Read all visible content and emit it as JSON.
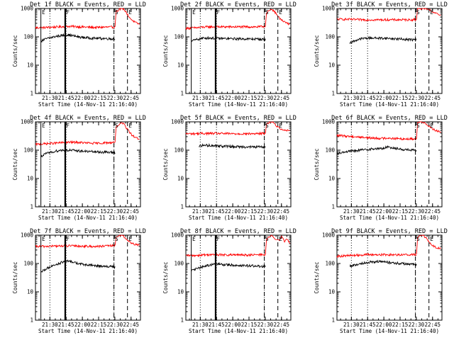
{
  "figure": {
    "colors": {
      "events": "#000000",
      "lld": "#ff0000",
      "axis": "#000000",
      "background": "#ffffff"
    }
  },
  "chart_data": [
    {
      "type": "line",
      "title": "Det 1f BLACK = Events, RED = LLD",
      "ylabel": "Counts/sec",
      "xlabel": "Start Time (14-Nov-11 21:16:40)",
      "ylim": [
        1,
        1000
      ],
      "yscale": "log",
      "yticks": [
        "1",
        "10",
        "100",
        "1000"
      ],
      "xlim_minutes": [
        0,
        97
      ],
      "xticks": [
        "21:30",
        "21:45",
        "22:00",
        "22:15",
        "22:30",
        "22:45"
      ],
      "xtick_minutes": [
        13.33,
        28.33,
        43.33,
        58.33,
        73.33,
        88.33
      ],
      "start_min": 5,
      "events": {
        "name": "Events",
        "start": 5,
        "values": [
          70,
          85,
          95,
          105,
          112,
          118,
          110,
          100,
          95,
          92,
          90,
          88,
          88,
          86,
          85
        ]
      },
      "lld": {
        "name": "LLD",
        "start": 0,
        "values": [
          210,
          210,
          215,
          220,
          225,
          230,
          235,
          230,
          225,
          220,
          215,
          215,
          220,
          220,
          225
        ]
      },
      "gap_min": 73.5,
      "burst": {
        "start": 74.5,
        "values": [
          800,
          900,
          1000,
          950,
          700,
          500,
          400,
          340,
          300,
          280
        ]
      },
      "markers": [
        {
          "label": "E",
          "min": 5,
          "style": "solid"
        },
        {
          "label": "F",
          "min": 27.5,
          "style": "thick"
        },
        {
          "label": "S",
          "min": 72.5,
          "style": "dashed"
        },
        {
          "label": "E",
          "min": 85,
          "style": "dashed"
        }
      ],
      "vlines": [
        {
          "min": 13.33,
          "style": "dotted"
        },
        {
          "min": 28.3,
          "style": "dotted"
        },
        {
          "min": 72.5,
          "style": "dotted"
        }
      ]
    },
    {
      "type": "line",
      "title": "Det 2f BLACK = Events, RED = LLD",
      "ylabel": "Counts/sec",
      "xlabel": "Start Time (14-Nov-11 21:16:40)",
      "ylim": [
        1,
        1000
      ],
      "yscale": "log",
      "yticks": [
        "1",
        "10",
        "100",
        "1000"
      ],
      "xlim_minutes": [
        0,
        97
      ],
      "xticks": [
        "21:30",
        "21:45",
        "22:00",
        "22:15",
        "22:30",
        "22:45"
      ],
      "xtick_minutes": [
        13.33,
        28.33,
        43.33,
        58.33,
        73.33,
        88.33
      ],
      "start_min": 5,
      "events": {
        "name": "Events",
        "start": 5,
        "values": [
          70,
          80,
          88,
          92,
          90,
          88,
          87,
          86,
          86,
          85,
          85,
          84,
          84,
          83,
          80
        ]
      },
      "lld": {
        "name": "LLD",
        "start": 0,
        "values": [
          200,
          205,
          210,
          220,
          225,
          225,
          225,
          225,
          225,
          225,
          225,
          225,
          225,
          225,
          240
        ]
      },
      "gap_min": 73.5,
      "burst": {
        "start": 74.5,
        "values": [
          700,
          850,
          950,
          800,
          600,
          460,
          380,
          330,
          300,
          280
        ]
      },
      "markers": [
        {
          "label": "E",
          "min": 5,
          "style": "solid"
        },
        {
          "label": "F",
          "min": 27.5,
          "style": "thick"
        },
        {
          "label": "S",
          "min": 72.5,
          "style": "dashed"
        },
        {
          "label": "E",
          "min": 85,
          "style": "dashed"
        }
      ],
      "vlines": [
        {
          "min": 13.33,
          "style": "dotted"
        },
        {
          "min": 28.3,
          "style": "dotted"
        },
        {
          "min": 72.5,
          "style": "dotted"
        }
      ]
    },
    {
      "type": "line",
      "title": "Det 3f BLACK = Events, RED = LLD",
      "ylabel": "Counts/sec",
      "xlabel": "Start Time (14-Nov-11 21:16:40)",
      "ylim": [
        1,
        1000
      ],
      "yscale": "log",
      "yticks": [
        "1",
        "10",
        "100",
        "1000"
      ],
      "xlim_minutes": [
        0,
        97
      ],
      "xticks": [
        "21:30",
        "21:45",
        "22:00",
        "22:15",
        "22:30",
        "22:45"
      ],
      "xtick_minutes": [
        13.33,
        28.33,
        43.33,
        58.33,
        73.33,
        88.33
      ],
      "start_min": 5,
      "events": {
        "name": "Events",
        "start": 12,
        "values": [
          60,
          75,
          85,
          90,
          92,
          90,
          90,
          88,
          86,
          84,
          82,
          80,
          78
        ]
      },
      "lld": {
        "name": "LLD",
        "start": 0,
        "values": [
          420,
          420,
          415,
          410,
          405,
          400,
          400,
          400,
          400,
          400,
          400,
          400,
          400,
          400,
          410
        ]
      },
      "gap_min": 73.5,
      "burst": {
        "start": 74.5,
        "values": [
          1000,
          1000,
          1000,
          1000,
          950,
          850,
          750,
          680,
          620,
          560
        ]
      },
      "markers": [
        {
          "label": "S",
          "min": 72.5,
          "style": "dashed"
        },
        {
          "label": "E",
          "min": 85,
          "style": "dashed"
        }
      ],
      "vlines": [
        {
          "min": 13.33,
          "style": "dotted"
        },
        {
          "min": 28.3,
          "style": "dotted"
        },
        {
          "min": 72.5,
          "style": "dotted"
        }
      ]
    },
    {
      "type": "line",
      "title": "Det 4f BLACK = Events, RED = LLD",
      "ylabel": "Counts/sec",
      "xlabel": "Start Time (14-Nov-11 21:16:40)",
      "ylim": [
        1,
        1000
      ],
      "yscale": "log",
      "yticks": [
        "1",
        "10",
        "100",
        "1000"
      ],
      "xlim_minutes": [
        0,
        97
      ],
      "xticks": [
        "21:30",
        "21:45",
        "22:00",
        "22:15",
        "22:30",
        "22:45"
      ],
      "xtick_minutes": [
        13.33,
        28.33,
        43.33,
        58.33,
        73.33,
        88.33
      ],
      "start_min": 5,
      "events": {
        "name": "Events",
        "start": 5,
        "values": [
          60,
          75,
          85,
          95,
          100,
          100,
          98,
          95,
          92,
          90,
          88,
          86,
          85,
          84,
          82
        ]
      },
      "lld": {
        "name": "LLD",
        "start": 0,
        "values": [
          160,
          165,
          170,
          175,
          180,
          185,
          190,
          190,
          185,
          180,
          175,
          175,
          180,
          185,
          190
        ]
      },
      "gap_min": 73.5,
      "burst": {
        "start": 74.5,
        "values": [
          650,
          800,
          900,
          850,
          600,
          450,
          350,
          300,
          270,
          250
        ]
      },
      "markers": [
        {
          "label": "E",
          "min": 5,
          "style": "solid"
        },
        {
          "label": "F",
          "min": 27.5,
          "style": "thick"
        },
        {
          "label": "S",
          "min": 72.5,
          "style": "dashed"
        },
        {
          "label": "E",
          "min": 85,
          "style": "dashed"
        }
      ],
      "vlines": [
        {
          "min": 13.33,
          "style": "dotted"
        },
        {
          "min": 28.3,
          "style": "dotted"
        },
        {
          "min": 72.5,
          "style": "dotted"
        }
      ]
    },
    {
      "type": "line",
      "title": "Det 5f BLACK = Events, RED = LLD",
      "ylabel": "Counts/sec",
      "xlabel": "Start Time (14-Nov-11 21:16:40)",
      "ylim": [
        1,
        1000
      ],
      "yscale": "log",
      "yticks": [
        "1",
        "10",
        "100",
        "1000"
      ],
      "xlim_minutes": [
        0,
        97
      ],
      "xticks": [
        "21:30",
        "21:45",
        "22:00",
        "22:15",
        "22:30",
        "22:45"
      ],
      "xtick_minutes": [
        13.33,
        28.33,
        43.33,
        58.33,
        73.33,
        88.33
      ],
      "start_min": 5,
      "events": {
        "name": "Events",
        "start": 12,
        "values": [
          140,
          150,
          148,
          145,
          140,
          138,
          135,
          133,
          132,
          130,
          130,
          130,
          130
        ]
      },
      "lld": {
        "name": "LLD",
        "start": 0,
        "values": [
          380,
          380,
          385,
          390,
          390,
          390,
          390,
          385,
          380,
          380,
          380,
          380,
          380,
          385,
          400
        ]
      },
      "gap_min": 73.5,
      "burst": {
        "start": 74.5,
        "values": [
          800,
          950,
          1000,
          900,
          700,
          600,
          550,
          520,
          500,
          480
        ]
      },
      "markers": [
        {
          "label": "S",
          "min": 72.5,
          "style": "dashed"
        },
        {
          "label": "E",
          "min": 85,
          "style": "dashed"
        }
      ],
      "vlines": [
        {
          "min": 13.33,
          "style": "dotted"
        },
        {
          "min": 28.3,
          "style": "dotted"
        },
        {
          "min": 72.5,
          "style": "dotted"
        }
      ]
    },
    {
      "type": "line",
      "title": "Det 6f BLACK = Events, RED = LLD",
      "ylabel": "Counts/sec",
      "xlabel": "Start Time (14-Nov-11 21:16:40)",
      "ylim": [
        1,
        1000
      ],
      "yscale": "log",
      "yticks": [
        "1",
        "10",
        "100",
        "1000"
      ],
      "xlim_minutes": [
        0,
        97
      ],
      "xticks": [
        "21:30",
        "21:45",
        "22:00",
        "22:15",
        "22:30",
        "22:45"
      ],
      "xtick_minutes": [
        13.33,
        28.33,
        43.33,
        58.33,
        73.33,
        88.33
      ],
      "start_min": 5,
      "events": {
        "name": "Events",
        "start": 0,
        "values": [
          80,
          85,
          90,
          95,
          100,
          105,
          110,
          112,
          115,
          130,
          120,
          110,
          105,
          100,
          98
        ]
      },
      "lld": {
        "name": "LLD",
        "start": 0,
        "values": [
          330,
          320,
          310,
          300,
          290,
          280,
          270,
          265,
          260,
          270,
          260,
          255,
          250,
          250,
          255
        ]
      },
      "gap_min": 73.5,
      "burst": {
        "start": 74.5,
        "values": [
          900,
          1000,
          1000,
          900,
          750,
          650,
          560,
          500,
          460,
          430
        ]
      },
      "markers": [
        {
          "label": "S",
          "min": 72.5,
          "style": "dashed"
        },
        {
          "label": "E",
          "min": 85,
          "style": "dashed"
        }
      ],
      "vlines": [
        {
          "min": 13.33,
          "style": "dotted"
        },
        {
          "min": 28.3,
          "style": "dotted"
        },
        {
          "min": 72.5,
          "style": "dotted"
        }
      ]
    },
    {
      "type": "line",
      "title": "Det 7f BLACK = Events, RED = LLD",
      "ylabel": "Counts/sec",
      "xlabel": "Start Time (14-Nov-11 21:16:40)",
      "ylim": [
        1,
        1000
      ],
      "yscale": "log",
      "yticks": [
        "1",
        "10",
        "100",
        "1000"
      ],
      "xlim_minutes": [
        0,
        97
      ],
      "xticks": [
        "21:30",
        "21:45",
        "22:00",
        "22:15",
        "22:30",
        "22:45"
      ],
      "xtick_minutes": [
        13.33,
        28.33,
        43.33,
        58.33,
        73.33,
        88.33
      ],
      "start_min": 5,
      "events": {
        "name": "Events",
        "start": 5,
        "values": [
          50,
          65,
          80,
          95,
          110,
          120,
          115,
          100,
          92,
          88,
          85,
          82,
          80,
          78,
          75
        ]
      },
      "lld": {
        "name": "LLD",
        "start": 0,
        "values": [
          400,
          400,
          405,
          410,
          415,
          420,
          420,
          415,
          410,
          405,
          400,
          405,
          410,
          420,
          440
        ]
      },
      "gap_min": 73.5,
      "burst": {
        "start": 74.5,
        "values": [
          800,
          950,
          1000,
          900,
          700,
          580,
          520,
          480,
          460,
          450
        ]
      },
      "markers": [
        {
          "label": "E",
          "min": 5,
          "style": "solid"
        },
        {
          "label": "F",
          "min": 27.5,
          "style": "thick"
        },
        {
          "label": "S",
          "min": 72.5,
          "style": "dashed"
        },
        {
          "label": "E",
          "min": 85,
          "style": "dashed"
        }
      ],
      "vlines": [
        {
          "min": 13.33,
          "style": "dotted"
        },
        {
          "min": 28.3,
          "style": "dotted"
        },
        {
          "min": 72.5,
          "style": "dotted"
        }
      ]
    },
    {
      "type": "line",
      "title": "Det 8f BLACK = Events, RED = LLD",
      "ylabel": "Counts/sec",
      "xlabel": "Start Time (14-Nov-11 21:16:40)",
      "ylim": [
        1,
        1000
      ],
      "yscale": "log",
      "yticks": [
        "1",
        "10",
        "100",
        "1000"
      ],
      "xlim_minutes": [
        0,
        97
      ],
      "xticks": [
        "21:30",
        "21:45",
        "22:00",
        "22:15",
        "22:30",
        "22:45"
      ],
      "xtick_minutes": [
        13.33,
        28.33,
        43.33,
        58.33,
        73.33,
        88.33
      ],
      "start_min": 5,
      "events": {
        "name": "Events",
        "start": 5,
        "values": [
          55,
          65,
          75,
          85,
          92,
          95,
          92,
          90,
          88,
          86,
          85,
          84,
          82,
          80,
          78
        ]
      },
      "lld": {
        "name": "LLD",
        "start": 0,
        "values": [
          190,
          190,
          195,
          200,
          205,
          205,
          205,
          200,
          200,
          200,
          200,
          200,
          200,
          205,
          210
        ]
      },
      "gap_min": 73.5,
      "burst": {
        "start": 74.5,
        "values": [
          700,
          850,
          950,
          800,
          650,
          700,
          900,
          600,
          750,
          500
        ]
      },
      "markers": [
        {
          "label": "E",
          "min": 5,
          "style": "solid"
        },
        {
          "label": "F",
          "min": 27.5,
          "style": "thick"
        },
        {
          "label": "S",
          "min": 72.5,
          "style": "dashed"
        },
        {
          "label": "E",
          "min": 85,
          "style": "dashed"
        }
      ],
      "vlines": [
        {
          "min": 13.33,
          "style": "dotted"
        },
        {
          "min": 28.3,
          "style": "dotted"
        },
        {
          "min": 72.5,
          "style": "dotted"
        }
      ]
    },
    {
      "type": "line",
      "title": "Det 9f BLACK = Events, RED = LLD",
      "ylabel": "Counts/sec",
      "xlabel": "Start Time (14-Nov-11 21:16:40)",
      "ylim": [
        1,
        1000
      ],
      "yscale": "log",
      "yticks": [
        "1",
        "10",
        "100",
        "1000"
      ],
      "xlim_minutes": [
        0,
        97
      ],
      "xticks": [
        "21:30",
        "21:45",
        "22:00",
        "22:15",
        "22:30",
        "22:45"
      ],
      "xtick_minutes": [
        13.33,
        28.33,
        43.33,
        58.33,
        73.33,
        88.33
      ],
      "start_min": 5,
      "events": {
        "name": "Events",
        "start": 12,
        "values": [
          80,
          90,
          100,
          110,
          115,
          118,
          115,
          110,
          105,
          100,
          98,
          95,
          90
        ]
      },
      "lld": {
        "name": "LLD",
        "start": 0,
        "values": [
          180,
          185,
          190,
          195,
          200,
          205,
          205,
          205,
          205,
          205,
          205,
          205,
          205,
          205,
          210
        ]
      },
      "gap_min": 73.5,
      "burst": {
        "start": 74.5,
        "values": [
          800,
          950,
          1000,
          850,
          650,
          500,
          420,
          380,
          350,
          330
        ]
      },
      "markers": [
        {
          "label": "S",
          "min": 72.5,
          "style": "dashed"
        },
        {
          "label": "E",
          "min": 85,
          "style": "dashed"
        }
      ],
      "vlines": [
        {
          "min": 13.33,
          "style": "dotted"
        },
        {
          "min": 28.3,
          "style": "dotted"
        },
        {
          "min": 72.5,
          "style": "dotted"
        }
      ]
    }
  ]
}
